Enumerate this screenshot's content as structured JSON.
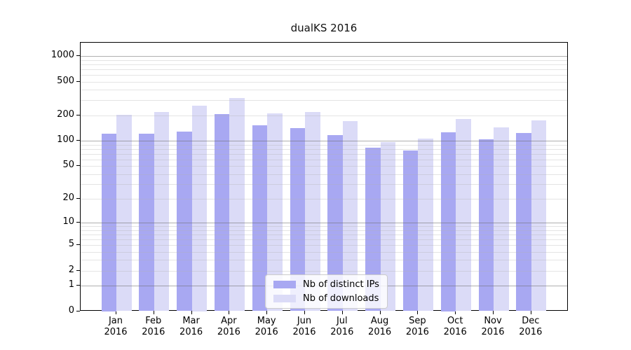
{
  "title": "dualKS 2016",
  "chart_data": {
    "type": "bar",
    "title": "dualKS 2016",
    "categories": [
      "Jan\n2016",
      "Feb\n2016",
      "Mar\n2016",
      "Apr\n2016",
      "May\n2016",
      "Jun\n2016",
      "Jul\n2016",
      "Aug\n2016",
      "Sep\n2016",
      "Oct\n2016",
      "Nov\n2016",
      "Dec\n2016"
    ],
    "series": [
      {
        "name": "Nb of distinct IPs",
        "color": "#a8a8f2",
        "values": [
          121,
          120,
          128,
          207,
          152,
          140,
          117,
          83,
          77,
          127,
          104,
          123
        ]
      },
      {
        "name": "Nb of downloads",
        "color": "#dbdbf7",
        "values": [
          204,
          217,
          262,
          318,
          212,
          217,
          170,
          97,
          105,
          180,
          143,
          175
        ]
      }
    ],
    "yscale": "log10(1+value)",
    "ytick_values": [
      0,
      1,
      2,
      5,
      10,
      20,
      50,
      100,
      200,
      500,
      1000
    ],
    "ytick_labels": [
      "0",
      "1",
      "2",
      "5",
      "10",
      "20",
      "50",
      "100",
      "200",
      "500",
      "1000"
    ],
    "major_gridline_values": [
      1,
      10,
      100,
      1000
    ],
    "ylim": [
      0,
      1430
    ],
    "grid": "on",
    "legend_position": "lower center",
    "xlabel": "",
    "ylabel": ""
  }
}
